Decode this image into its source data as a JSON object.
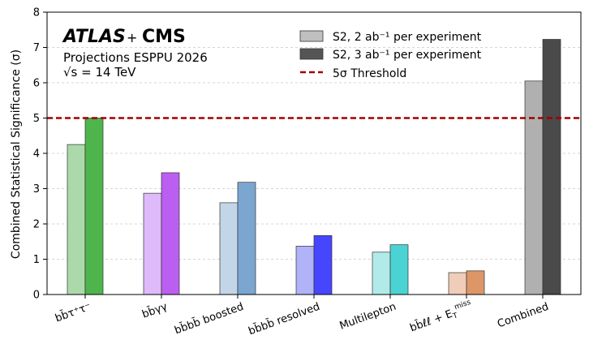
{
  "chart_data": {
    "type": "bar",
    "ylabel": "Combined Statistical Significance (σ)",
    "ylim": [
      0,
      8
    ],
    "yticks": [
      0,
      1,
      2,
      3,
      4,
      5,
      6,
      7,
      8
    ],
    "grid": "y",
    "categories": [
      "bb̄τ⁺τ⁻",
      "bb̄γγ",
      "bb̄bb̄ boosted",
      "bb̄bb̄ resolved",
      "Multilepton",
      "bb̄ℓℓ + E_T^miss",
      "Combined"
    ],
    "series": [
      {
        "name": "S2, 2 ab⁻¹ per experiment",
        "values": [
          4.25,
          2.87,
          2.6,
          1.37,
          1.2,
          0.62,
          6.05
        ],
        "colors": [
          "#acd9aa",
          "#debafa",
          "#c3d6e8",
          "#b1b3f8",
          "#b0ebea",
          "#f0cdb8",
          "#b0b0b0"
        ],
        "legend_color": "#c0c0c0"
      },
      {
        "name": "S2, 3 ab⁻¹ per experiment",
        "values": [
          5.0,
          3.45,
          3.18,
          1.67,
          1.41,
          0.67,
          7.23
        ],
        "colors": [
          "#4eb54c",
          "#bb5ef2",
          "#7aa6d0",
          "#4646ff",
          "#4bd2d2",
          "#dd9766",
          "#4a4a4a"
        ],
        "legend_color": "#555555"
      }
    ],
    "threshold": {
      "label": "5σ Threshold",
      "value": 5,
      "color": "#a00000"
    },
    "legend_position": "top-right",
    "annotations": {
      "atlas": "ATLAS",
      "plus": "+",
      "cms": "CMS",
      "line1": "Projections ESPPU 2026",
      "line2": "√s = 14 TeV"
    }
  }
}
